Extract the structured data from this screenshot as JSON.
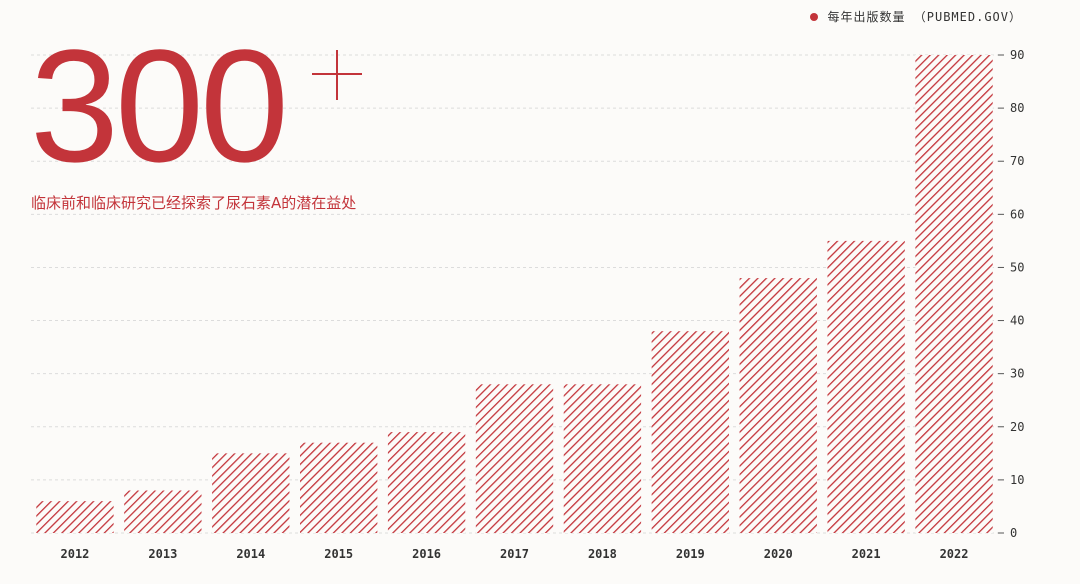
{
  "legend": {
    "label": "每年出版数量 （PUBMED.GOV）"
  },
  "headline": {
    "number": "300",
    "subtitle": "临床前和临床研究已经探索了尿石素A的潜在益处"
  },
  "colors": {
    "accent": "#c3343a",
    "background": "#fcfbf9",
    "grid": "#dcdcdc",
    "text": "#333333"
  },
  "chart_data": {
    "type": "bar",
    "categories": [
      "2012",
      "2013",
      "2014",
      "2015",
      "2016",
      "2017",
      "2018",
      "2019",
      "2020",
      "2021",
      "2022"
    ],
    "series": [
      {
        "name": "每年出版数量 （PUBMED.GOV）",
        "values": [
          6,
          8,
          15,
          17,
          19,
          28,
          28,
          38,
          48,
          55,
          90
        ]
      }
    ],
    "ylim": [
      0,
      90
    ],
    "yticks": [
      0,
      10,
      20,
      30,
      40,
      50,
      60,
      70,
      80,
      90
    ],
    "y_axis_side": "right",
    "grid": true,
    "bar_fill": "diagonal-hatch",
    "legend_position": "top-right"
  }
}
